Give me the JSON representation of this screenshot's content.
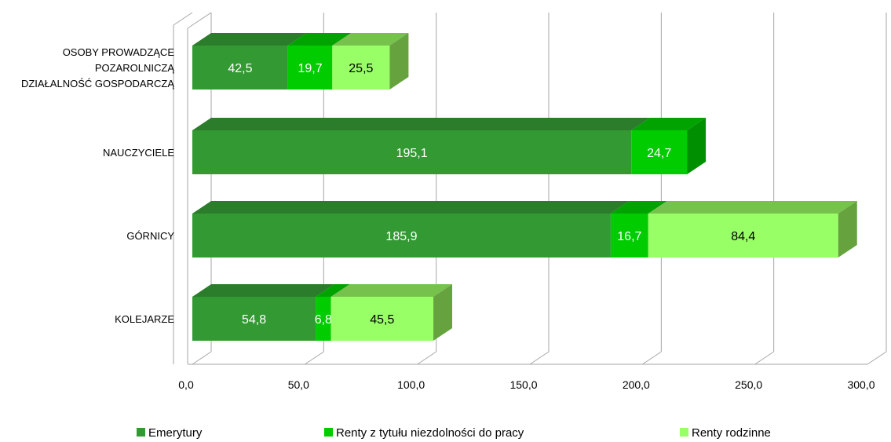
{
  "chart_data": {
    "type": "bar",
    "orientation": "horizontal",
    "stacked": true,
    "three_d": true,
    "categories": [
      [
        "OSOBY PROWADZĄCE",
        "POZAROLNICZĄ",
        "DZIAŁALNOŚĆ GOSPODARCZĄ"
      ],
      [
        "NAUCZYCIELE"
      ],
      [
        "GÓRNICY"
      ],
      [
        "KOLEJARZE"
      ]
    ],
    "series": [
      {
        "name": "Emerytury",
        "values": [
          42.5,
          195.1,
          185.9,
          54.8
        ],
        "labels": [
          "42,5",
          "195,1",
          "185,9",
          "54,8"
        ],
        "color": "#339933",
        "top_color": "#2b7d2b",
        "side_color": "#247024",
        "label_color": "#ffffff"
      },
      {
        "name": "Renty z tytułu niezdolności do pracy",
        "values": [
          19.7,
          24.7,
          16.7,
          6.8
        ],
        "labels": [
          "19,7",
          "24,7",
          "16,7",
          "6,8"
        ],
        "color": "#00cc00",
        "top_color": "#00a300",
        "side_color": "#008f00",
        "label_color": "#ffffff"
      },
      {
        "name": "Renty rodzinne",
        "values": [
          25.5,
          null,
          84.4,
          45.5
        ],
        "labels": [
          "25,5",
          "",
          "84,4",
          "45,5"
        ],
        "color": "#99ff66",
        "top_color": "#77c24d",
        "side_color": "#66a33f",
        "label_color": "#000000"
      }
    ],
    "xlim": [
      0,
      300
    ],
    "x_ticks": [
      0,
      50,
      100,
      150,
      200,
      250,
      300
    ],
    "x_tick_labels": [
      "0,0",
      "50,0",
      "100,0",
      "150,0",
      "200,0",
      "250,0",
      "300,0"
    ],
    "grid": true,
    "legend": "bottom"
  }
}
